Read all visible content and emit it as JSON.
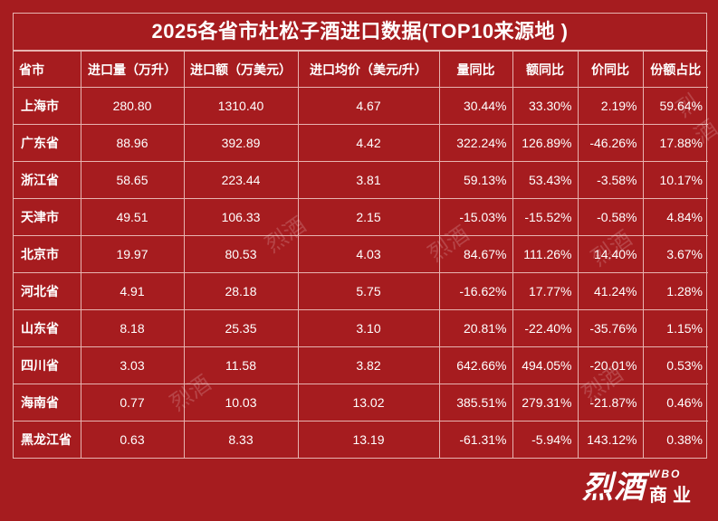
{
  "title": "2025各省市杜松子酒进口数据(TOP10来源地 )",
  "headers": [
    "省市",
    "进口量（万升）",
    "进口额（万美元）",
    "进口均价（美元/升）",
    "量同比",
    "额同比",
    "价同比",
    "份额占比"
  ],
  "rows": [
    [
      "上海市",
      "280.80",
      "1310.40",
      "4.67",
      "30.44%",
      "33.30%",
      "2.19%",
      "59.64%"
    ],
    [
      "广东省",
      "88.96",
      "392.89",
      "4.42",
      "322.24%",
      "126.89%",
      "-46.26%",
      "17.88%"
    ],
    [
      "浙江省",
      "58.65",
      "223.44",
      "3.81",
      "59.13%",
      "53.43%",
      "-3.58%",
      "10.17%"
    ],
    [
      "天津市",
      "49.51",
      "106.33",
      "2.15",
      "-15.03%",
      "-15.52%",
      "-0.58%",
      "4.84%"
    ],
    [
      "北京市",
      "19.97",
      "80.53",
      "4.03",
      "84.67%",
      "111.26%",
      "14.40%",
      "3.67%"
    ],
    [
      "河北省",
      "4.91",
      "28.18",
      "5.75",
      "-16.62%",
      "17.77%",
      "41.24%",
      "1.28%"
    ],
    [
      "山东省",
      "8.18",
      "25.35",
      "3.10",
      "20.81%",
      "-22.40%",
      "-35.76%",
      "1.15%"
    ],
    [
      "四川省",
      "3.03",
      "11.58",
      "3.82",
      "642.66%",
      "494.05%",
      "-20.01%",
      "0.53%"
    ],
    [
      "海南省",
      "0.77",
      "10.03",
      "13.02",
      "385.51%",
      "279.31%",
      "-21.87%",
      "0.46%"
    ],
    [
      "黑龙江省",
      "0.63",
      "8.33",
      "13.19",
      "-61.31%",
      "-5.94%",
      "143.12%",
      "0.38%"
    ]
  ],
  "logo": {
    "main": "烈酒",
    "sub_top": "WBO",
    "sub_bottom": "商业"
  },
  "watermark_text": "烈酒"
}
